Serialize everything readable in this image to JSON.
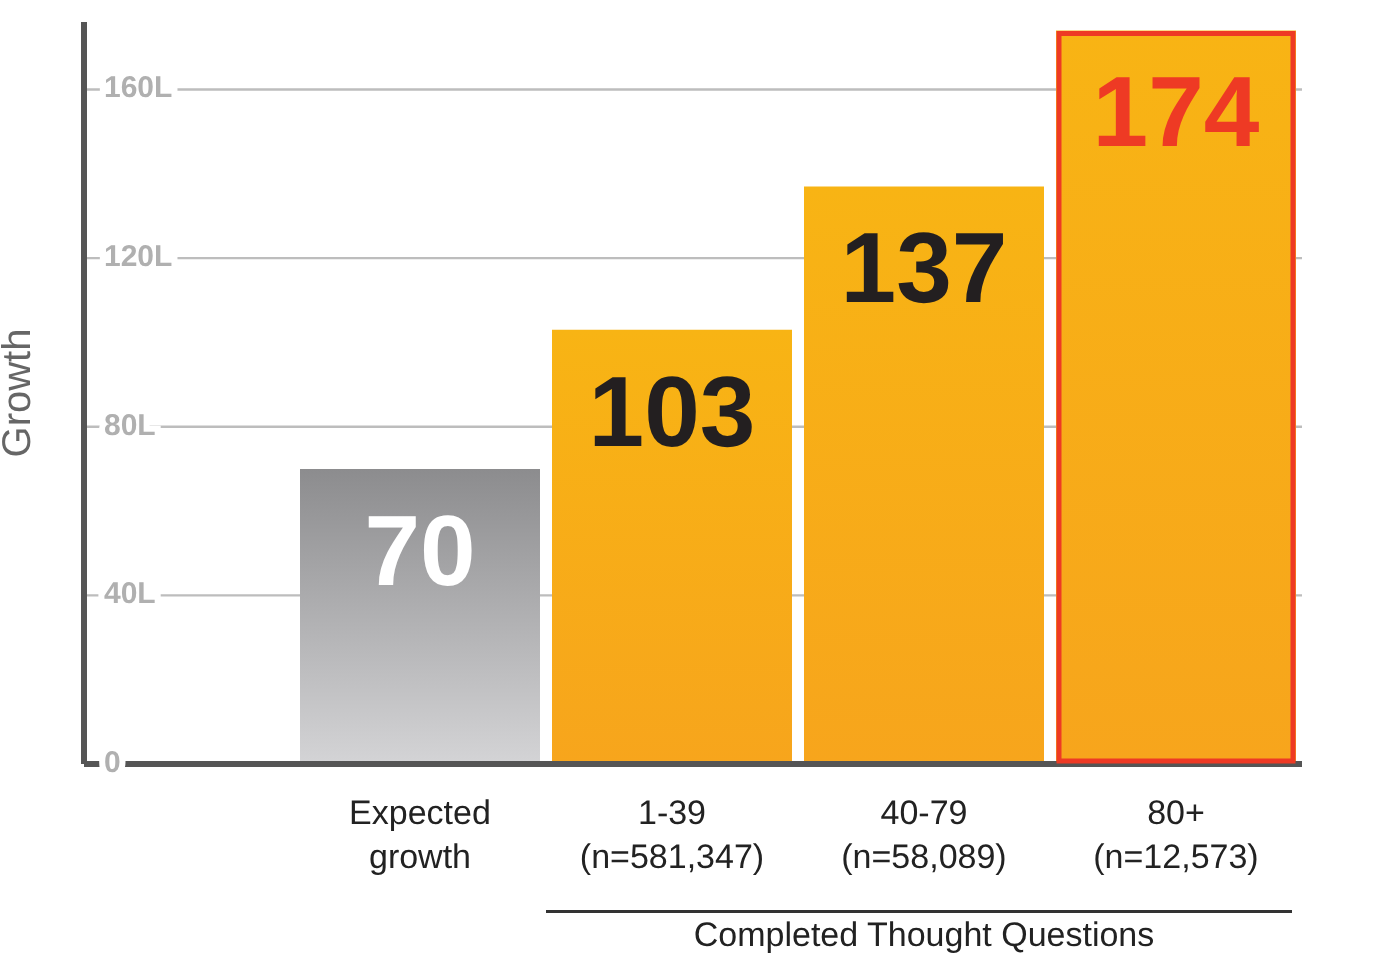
{
  "chart_data": {
    "type": "bar",
    "ylabel": "Growth",
    "categories": [
      "Expected\ngrowth",
      "1-39\n(n=581,347)",
      "40-79\n(n=58,089)",
      "80+\n(n=12,573)"
    ],
    "values": [
      70,
      103,
      137,
      174
    ],
    "colors": [
      "#8c8c8e",
      "#f8b414",
      "#f8b414",
      "#f8b414"
    ],
    "ylim": [
      0,
      176
    ],
    "yticks": [
      0,
      {
        "value": 40,
        "label": "40L"
      },
      {
        "value": 80,
        "label": "80L"
      },
      {
        "value": 120,
        "label": "120L"
      },
      {
        "value": 160,
        "label": "160L"
      }
    ],
    "grid": "y",
    "data_labels": true,
    "annotations": [
      "Completed Thought Questions"
    ]
  }
}
